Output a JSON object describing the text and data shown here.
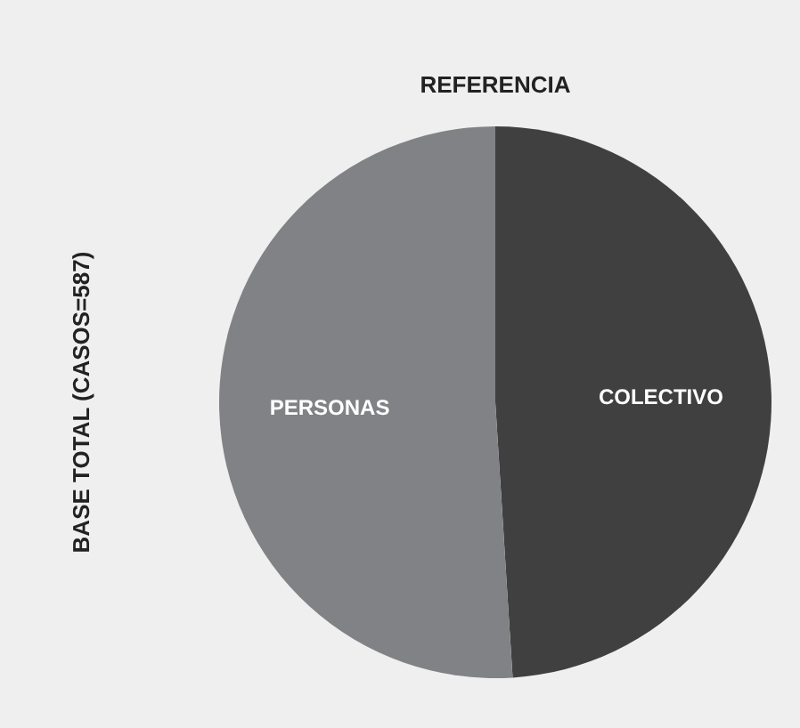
{
  "chart_data": {
    "type": "pie",
    "title": "REFERENCIA",
    "ylabel": "BASE TOTAL (CASOS=587)",
    "categories": [
      "COLECTIVO",
      "PERSONAS"
    ],
    "values": [
      49,
      51
    ],
    "colors": [
      "#404040",
      "#808285"
    ]
  }
}
